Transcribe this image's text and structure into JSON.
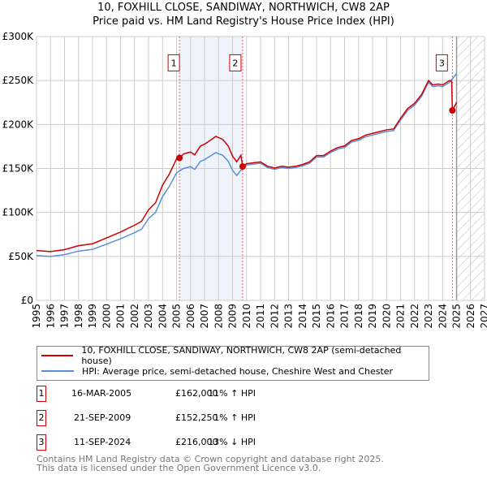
{
  "chart_data": {
    "type": "line",
    "title": "10, FOXHILL CLOSE, SANDIWAY, NORTHWICH, CW8 2AP",
    "subtitle": "Price paid vs. HM Land Registry's House Price Index (HPI)",
    "xlim": [
      1995,
      2027
    ],
    "ylim": [
      0,
      300000
    ],
    "x_ticks": [
      "1995",
      "1996",
      "1997",
      "1998",
      "1999",
      "2000",
      "2001",
      "2002",
      "2003",
      "2004",
      "2005",
      "2006",
      "2007",
      "2008",
      "2009",
      "2010",
      "2011",
      "2012",
      "2013",
      "2014",
      "2015",
      "2016",
      "2017",
      "2018",
      "2019",
      "2020",
      "2021",
      "2022",
      "2023",
      "2024",
      "2025",
      "2026",
      "2027"
    ],
    "y_ticks": [
      {
        "v": 0,
        "l": "£0"
      },
      {
        "v": 50000,
        "l": "£50K"
      },
      {
        "v": 100000,
        "l": "£100K"
      },
      {
        "v": 150000,
        "l": "£150K"
      },
      {
        "v": 200000,
        "l": "£200K"
      },
      {
        "v": 250000,
        "l": "£250K"
      },
      {
        "v": 300000,
        "l": "£300K"
      }
    ],
    "grid": true,
    "series": [
      {
        "name": "10, FOXHILL CLOSE, SANDIWAY, NORTHWICH, CW8 2AP (semi-detached house)",
        "color": "#cc0000",
        "x": [
          1995,
          1996,
          1997,
          1998,
          1999,
          2000,
          2001,
          2002,
          2002.5,
          2003,
          2003.5,
          2004,
          2004.5,
          2005,
          2005.21,
          2005.5,
          2006,
          2006.3,
          2006.7,
          2007,
          2007.5,
          2007.8,
          2008.3,
          2008.7,
          2009,
          2009.3,
          2009.6,
          2009.72,
          2010,
          2010.5,
          2011,
          2011.5,
          2012,
          2012.5,
          2013,
          2013.5,
          2014,
          2014.5,
          2015,
          2015.5,
          2016,
          2016.5,
          2017,
          2017.5,
          2018,
          2018.5,
          2019,
          2019.5,
          2020,
          2020.5,
          2021,
          2021.5,
          2022,
          2022.5,
          2023,
          2023.3,
          2023.7,
          2024,
          2024.5,
          2024.65,
          2024.7,
          2025
        ],
        "y": [
          56600,
          55500,
          57700,
          62200,
          64400,
          71000,
          77700,
          85500,
          89900,
          103000,
          111000,
          131000,
          144000,
          161000,
          162000,
          166500,
          168700,
          165400,
          175400,
          177600,
          183000,
          186500,
          183000,
          175400,
          164000,
          157600,
          165000,
          152250,
          155500,
          156500,
          157500,
          152500,
          150500,
          152500,
          151500,
          152500,
          154500,
          157500,
          164600,
          164600,
          169700,
          173700,
          175700,
          181800,
          183800,
          187900,
          189900,
          191900,
          193900,
          194900,
          207000,
          218000,
          224000,
          234000,
          250000,
          245000,
          246000,
          245000,
          250000,
          249000,
          216000,
          225000
        ]
      },
      {
        "name": "HPI: Average price, semi-detached house, Cheshire West and Chester",
        "color": "#5b8fd4",
        "x": [
          1995,
          1996,
          1997,
          1998,
          1999,
          2000,
          2001,
          2002,
          2002.5,
          2003,
          2003.5,
          2004,
          2004.5,
          2005,
          2005.5,
          2006,
          2006.3,
          2006.7,
          2007,
          2007.5,
          2007.8,
          2008.3,
          2008.7,
          2009,
          2009.3,
          2009.7,
          2010,
          2010.5,
          2011,
          2011.5,
          2012,
          2012.5,
          2013,
          2013.5,
          2014,
          2014.5,
          2015,
          2015.5,
          2016,
          2016.5,
          2017,
          2017.5,
          2018,
          2018.5,
          2019,
          2019.5,
          2020,
          2020.5,
          2021,
          2021.5,
          2022,
          2022.5,
          2023,
          2023.3,
          2023.7,
          2024,
          2024.5,
          2025
        ],
        "y": [
          51000,
          50000,
          52000,
          56000,
          58000,
          64000,
          70000,
          77000,
          81000,
          93000,
          100000,
          118000,
          130000,
          145000,
          150000,
          152000,
          149000,
          158000,
          160000,
          165000,
          168000,
          165000,
          158000,
          148000,
          142000,
          150000,
          154000,
          155000,
          156000,
          151000,
          149000,
          151000,
          150000,
          151000,
          153000,
          156000,
          163000,
          163000,
          168000,
          172000,
          174000,
          180000,
          182000,
          186000,
          188000,
          190000,
          192000,
          193000,
          205000,
          216000,
          222000,
          232000,
          248000,
          243000,
          244000,
          243000,
          248000,
          258000
        ]
      }
    ],
    "sales": [
      {
        "n": "1",
        "x": 2005.21,
        "y": 162000
      },
      {
        "n": "2",
        "x": 2009.72,
        "y": 152250
      },
      {
        "n": "3",
        "x": 2024.7,
        "y": 216000
      }
    ],
    "shaded_range": [
      2005.21,
      2009.72
    ],
    "forecast_from": 2025.0
  },
  "title": "10, FOXHILL CLOSE, SANDIWAY, NORTHWICH, CW8 2AP",
  "subtitle": "Price paid vs. HM Land Registry's House Price Index (HPI)",
  "legend": {
    "red": "10, FOXHILL CLOSE, SANDIWAY, NORTHWICH, CW8 2AP (semi-detached house)",
    "blue": "HPI: Average price, semi-detached house, Cheshire West and Chester"
  },
  "transactions": [
    {
      "n": "1",
      "date": "16-MAR-2005",
      "price": "£162,000",
      "hpi": "11% ↑ HPI"
    },
    {
      "n": "2",
      "date": "21-SEP-2009",
      "price": "£152,250",
      "hpi": "1% ↑ HPI"
    },
    {
      "n": "3",
      "date": "11-SEP-2024",
      "price": "£216,000",
      "hpi": "13% ↓ HPI"
    }
  ],
  "footer": [
    "Contains HM Land Registry data © Crown copyright and database right 2025.",
    "This data is licensed under the Open Government Licence v3.0."
  ]
}
